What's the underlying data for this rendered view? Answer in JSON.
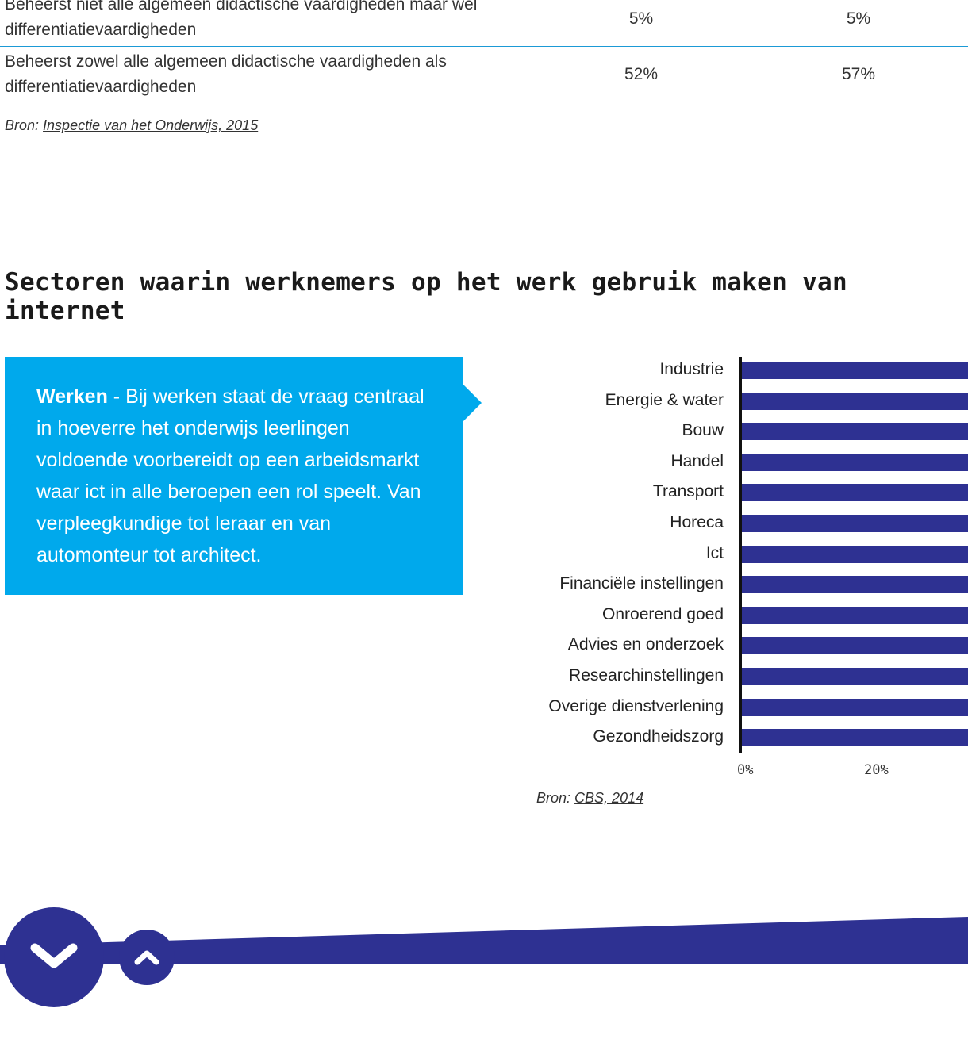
{
  "table": {
    "rows": [
      {
        "label": "Beheerst niet alle algemeen didactische vaardigheden maar wel differentiatievaardigheden",
        "values": [
          "5%",
          "5%"
        ]
      },
      {
        "label": "Beheerst zowel alle algemeen didactische vaardigheden als differentiatievaardigheden",
        "values": [
          "52%",
          "57%"
        ]
      }
    ],
    "source_prefix": "Bron:",
    "source_link": "Inspectie van het Onderwijs, 2015"
  },
  "section": {
    "title": "Sectoren waarin werknemers op het werk gebruik maken van internet"
  },
  "callout": {
    "lead": "Werken",
    "text": " - Bij werken staat de vraag centraal in hoeverre het onderwijs leerlingen voldoende voorbereidt op een arbeidsmarkt waar ict in alle beroepen een rol speelt. Van verpleegkundige tot leraar en van automonteur tot architect."
  },
  "chart_data": {
    "type": "bar",
    "orientation": "horizontal",
    "categories": [
      "Industrie",
      "Energie & water",
      "Bouw",
      "Handel",
      "Transport",
      "Horeca",
      "Ict",
      "Financiële instellingen",
      "Onroerend goed",
      "Advies en onderzoek",
      "Researchinstellingen",
      "Overige dienstverlening",
      "Gezondheidszorg"
    ],
    "x_ticks": [
      "0%",
      "20%"
    ],
    "grid": true,
    "color": "#2e3192",
    "note": "bars extend beyond the visible area (cropped at right edge)",
    "source_prefix": "Bron:",
    "source_link": "CBS, 2014"
  },
  "colors": {
    "accent_blue": "#00a9ec",
    "navy": "#2e3192",
    "table_line": "#1b9ad6"
  },
  "footer": {
    "down_icon": "chevron-down-icon",
    "up_icon": "chevron-up-icon"
  }
}
